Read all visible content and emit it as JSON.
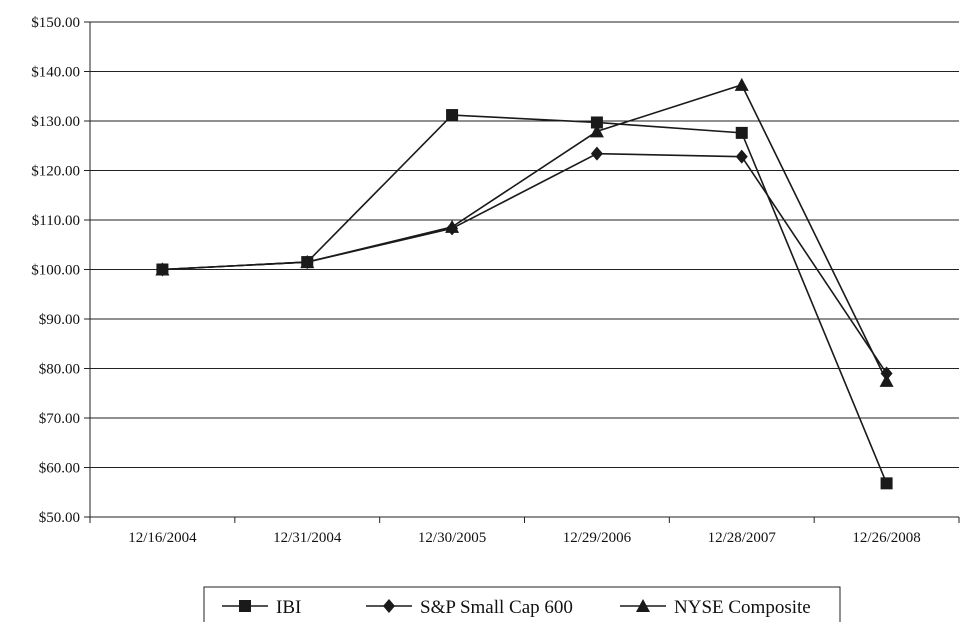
{
  "chart_data": {
    "type": "line",
    "title": "",
    "xlabel": "",
    "ylabel": "",
    "categories": [
      "12/16/2004",
      "12/31/2004",
      "12/30/2005",
      "12/29/2006",
      "12/28/2007",
      "12/26/2008"
    ],
    "ylim": [
      50,
      150
    ],
    "yticks": [
      "$50.00",
      "$60.00",
      "$70.00",
      "$80.00",
      "$90.00",
      "$100.00",
      "$110.00",
      "$120.00",
      "$130.00",
      "$140.00",
      "$150.00"
    ],
    "grid": "horizontal",
    "legend_position": "bottom",
    "series": [
      {
        "name": "IBI",
        "marker": "square",
        "color": "#1a1a1a",
        "values": [
          100.0,
          101.5,
          131.2,
          129.7,
          127.6,
          56.8
        ]
      },
      {
        "name": "S&P Small Cap 600",
        "marker": "diamond",
        "color": "#1a1a1a",
        "values": [
          100.0,
          101.5,
          108.3,
          123.4,
          122.8,
          79.0
        ]
      },
      {
        "name": "NYSE Composite",
        "marker": "triangle",
        "color": "#1a1a1a",
        "values": [
          100.0,
          101.5,
          108.6,
          127.9,
          137.3,
          77.5
        ]
      }
    ]
  }
}
